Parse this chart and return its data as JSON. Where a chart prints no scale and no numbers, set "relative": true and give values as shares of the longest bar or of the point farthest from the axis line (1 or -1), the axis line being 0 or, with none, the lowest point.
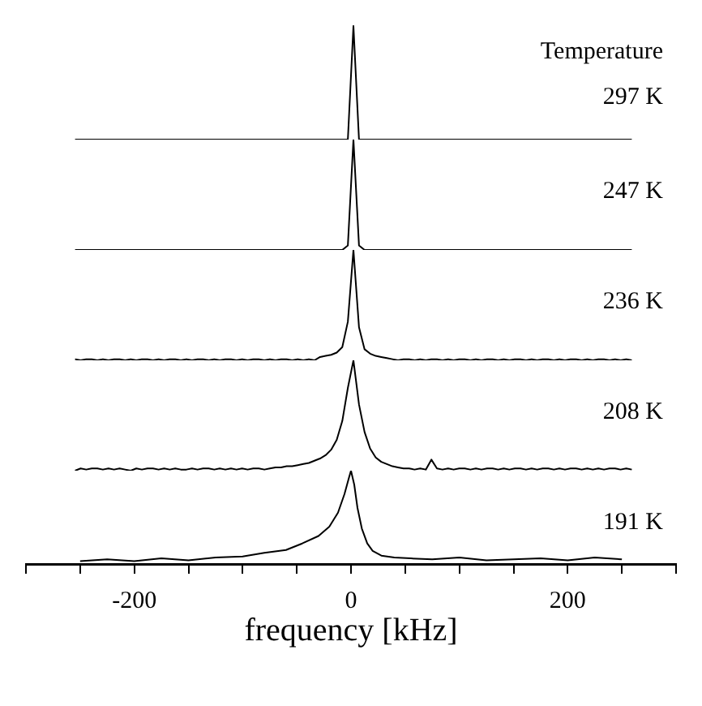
{
  "chart_data": [
    {
      "type": "line",
      "relative": true,
      "tick_labels": false,
      "annotations": [
        "Temperature",
        "297 K"
      ],
      "categories": [
        null,
        null,
        null,
        null,
        null,
        null,
        null,
        null,
        null,
        null,
        null,
        null,
        null,
        null,
        null,
        null,
        null,
        null,
        null,
        null,
        null,
        null,
        null,
        null,
        null,
        null,
        null,
        null,
        null,
        null,
        null,
        null,
        null,
        null,
        null,
        null,
        null,
        null,
        null,
        null,
        null,
        null,
        null,
        null,
        null,
        null,
        null,
        null,
        null,
        null,
        null,
        null,
        null,
        null,
        null,
        null,
        null,
        null,
        null,
        null,
        null,
        null,
        null,
        null,
        null,
        null,
        null,
        null,
        null,
        null,
        null,
        null,
        null,
        null,
        null,
        null,
        null,
        null,
        null,
        null,
        null,
        null,
        null,
        null,
        null,
        null,
        null,
        null,
        null,
        null,
        null,
        null,
        null,
        null,
        null,
        null,
        null,
        null,
        null,
        null,
        null
      ],
      "series": [
        {
          "color": "#000000",
          "values": [
            0,
            0,
            0,
            0,
            0,
            0,
            0,
            0,
            0,
            0,
            0,
            0,
            0,
            0,
            0,
            0,
            0,
            0,
            0,
            0,
            0,
            0,
            0,
            0,
            0,
            0,
            0,
            0,
            0,
            0,
            0,
            0,
            0,
            0,
            0,
            0,
            0,
            0,
            0,
            0,
            0,
            0,
            0,
            0,
            0,
            0,
            0,
            0,
            0,
            0,
            1,
            0,
            0,
            0,
            0,
            0,
            0,
            0,
            0,
            0,
            0,
            0,
            0,
            0,
            0,
            0,
            0,
            0,
            0,
            0,
            0,
            0,
            0,
            0,
            0,
            0,
            0,
            0,
            0,
            0,
            0,
            0,
            0,
            0,
            0,
            0,
            0,
            0,
            0,
            0,
            0,
            0,
            0,
            0,
            0,
            0,
            0,
            0,
            0,
            0,
            0
          ]
        }
      ]
    },
    {
      "type": "line",
      "relative": true,
      "tick_labels": false,
      "annotations": [
        "247 K"
      ],
      "categories": [
        null,
        null,
        null,
        null,
        null,
        null,
        null,
        null,
        null,
        null,
        null,
        null,
        null,
        null,
        null,
        null,
        null,
        null,
        null,
        null,
        null,
        null,
        null,
        null,
        null,
        null,
        null,
        null,
        null,
        null,
        null,
        null,
        null,
        null,
        null,
        null,
        null,
        null,
        null,
        null,
        null,
        null,
        null,
        null,
        null,
        null,
        null,
        null,
        null,
        null,
        null,
        null,
        null,
        null,
        null,
        null,
        null,
        null,
        null,
        null,
        null,
        null,
        null,
        null,
        null,
        null,
        null,
        null,
        null,
        null,
        null,
        null,
        null,
        null,
        null,
        null,
        null,
        null,
        null,
        null,
        null,
        null,
        null,
        null,
        null,
        null,
        null,
        null,
        null,
        null,
        null,
        null,
        null,
        null,
        null,
        null,
        null,
        null,
        null,
        null,
        null
      ],
      "series": [
        {
          "color": "#000000",
          "values": [
            0,
            0,
            0,
            0,
            0,
            0,
            0,
            0,
            0,
            0,
            0,
            0,
            0,
            0,
            0,
            0,
            0,
            0,
            0,
            0,
            0,
            0,
            0,
            0,
            0,
            0,
            0,
            0,
            0,
            0,
            0,
            0,
            0,
            0,
            0,
            0,
            0,
            0,
            0,
            0,
            0,
            0,
            0,
            0,
            0,
            0,
            0,
            0,
            0,
            0.04,
            1,
            0.04,
            0,
            0,
            0,
            0,
            0,
            0,
            0,
            0,
            0,
            0,
            0,
            0,
            0,
            0,
            0,
            0,
            0,
            0,
            0,
            0,
            0,
            0,
            0,
            0,
            0,
            0,
            0,
            0,
            0,
            0,
            0,
            0,
            0,
            0,
            0,
            0,
            0,
            0,
            0,
            0,
            0,
            0,
            0,
            0,
            0,
            0,
            0,
            0,
            0
          ]
        }
      ]
    },
    {
      "type": "line",
      "relative": true,
      "tick_labels": false,
      "annotations": [
        "236 K"
      ],
      "categories": [
        null,
        null,
        null,
        null,
        null,
        null,
        null,
        null,
        null,
        null,
        null,
        null,
        null,
        null,
        null,
        null,
        null,
        null,
        null,
        null,
        null,
        null,
        null,
        null,
        null,
        null,
        null,
        null,
        null,
        null,
        null,
        null,
        null,
        null,
        null,
        null,
        null,
        null,
        null,
        null,
        null,
        null,
        null,
        null,
        null,
        null,
        null,
        null,
        null,
        null,
        null,
        null,
        null,
        null,
        null,
        null,
        null,
        null,
        null,
        null,
        null,
        null,
        null,
        null,
        null,
        null,
        null,
        null,
        null,
        null,
        null,
        null,
        null,
        null,
        null,
        null,
        null,
        null,
        null,
        null,
        null,
        null,
        null,
        null,
        null,
        null,
        null,
        null,
        null,
        null,
        null,
        null,
        null,
        null,
        null,
        null,
        null,
        null,
        null,
        null,
        null
      ],
      "series": [
        {
          "color": "#000000",
          "values": [
            0.01,
            0,
            0.01,
            0.01,
            0,
            0.01,
            0,
            0.01,
            0.01,
            0,
            0.01,
            0,
            0.01,
            0.01,
            0,
            0.01,
            0,
            0.01,
            0.01,
            0,
            0.01,
            0,
            0.01,
            0.01,
            0,
            0.01,
            0,
            0.01,
            0.01,
            0,
            0.01,
            0,
            0.01,
            0.01,
            0,
            0.01,
            0,
            0.01,
            0.01,
            0,
            0.01,
            0,
            0.01,
            0,
            0.03,
            0.04,
            0.05,
            0.07,
            0.12,
            0.35,
            1,
            0.3,
            0.1,
            0.06,
            0.04,
            0.03,
            0.02,
            0.01,
            0,
            0.01,
            0.01,
            0,
            0.01,
            0,
            0.01,
            0.01,
            0,
            0.01,
            0,
            0.01,
            0.01,
            0,
            0.01,
            0,
            0.01,
            0.01,
            0,
            0.01,
            0,
            0.01,
            0.01,
            0,
            0.01,
            0,
            0.01,
            0.01,
            0,
            0.01,
            0,
            0.01,
            0.01,
            0,
            0.01,
            0,
            0.01,
            0.01,
            0,
            0.01,
            0,
            0.01,
            0
          ]
        }
      ]
    },
    {
      "type": "line",
      "relative": true,
      "tick_labels": false,
      "annotations": [
        "208 K"
      ],
      "categories": [
        null,
        null,
        null,
        null,
        null,
        null,
        null,
        null,
        null,
        null,
        null,
        null,
        null,
        null,
        null,
        null,
        null,
        null,
        null,
        null,
        null,
        null,
        null,
        null,
        null,
        null,
        null,
        null,
        null,
        null,
        null,
        null,
        null,
        null,
        null,
        null,
        null,
        null,
        null,
        null,
        null,
        null,
        null,
        null,
        null,
        null,
        null,
        null,
        null,
        null,
        null,
        null,
        null,
        null,
        null,
        null,
        null,
        null,
        null,
        null,
        null,
        null,
        null,
        null,
        null,
        null,
        null,
        null,
        null,
        null,
        null,
        null,
        null,
        null,
        null,
        null,
        null,
        null,
        null,
        null,
        null,
        null,
        null,
        null,
        null,
        null,
        null,
        null,
        null,
        null,
        null,
        null,
        null,
        null,
        null,
        null,
        null,
        null,
        null,
        null,
        null
      ],
      "series": [
        {
          "color": "#000000",
          "values": [
            0,
            0.02,
            0.01,
            0.02,
            0.02,
            0.01,
            0.02,
            0.01,
            0.02,
            0.01,
            0,
            0.02,
            0.01,
            0.02,
            0.02,
            0.01,
            0.02,
            0.01,
            0.02,
            0.01,
            0.01,
            0.02,
            0.01,
            0.02,
            0.02,
            0.01,
            0.02,
            0.01,
            0.02,
            0.01,
            0.02,
            0.01,
            0.02,
            0.02,
            0.01,
            0.02,
            0.03,
            0.03,
            0.04,
            0.04,
            0.05,
            0.06,
            0.07,
            0.09,
            0.11,
            0.14,
            0.19,
            0.28,
            0.45,
            0.75,
            1,
            0.6,
            0.35,
            0.2,
            0.12,
            0.08,
            0.06,
            0.04,
            0.03,
            0.02,
            0.02,
            0.01,
            0.02,
            0.01,
            0.1,
            0.02,
            0.01,
            0.02,
            0.01,
            0.02,
            0.02,
            0.01,
            0.02,
            0.01,
            0.02,
            0.02,
            0.01,
            0.02,
            0.01,
            0.02,
            0.02,
            0.01,
            0.02,
            0.01,
            0.02,
            0.02,
            0.01,
            0.02,
            0.01,
            0.02,
            0.02,
            0.01,
            0.02,
            0.01,
            0.02,
            0.01,
            0.02,
            0.02,
            0.01,
            0.02,
            0.01
          ]
        }
      ]
    },
    {
      "type": "line",
      "relative": true,
      "xlim": [
        -300,
        300
      ],
      "xticks": [
        {
          "value": -300,
          "label": null
        },
        {
          "value": -250,
          "label": null
        },
        -200,
        {
          "value": -150,
          "label": null
        },
        {
          "value": -100,
          "label": null
        },
        {
          "value": -50,
          "label": null
        },
        0,
        {
          "value": 50,
          "label": null
        },
        {
          "value": 100,
          "label": null
        },
        {
          "value": 150,
          "label": null
        },
        200,
        {
          "value": 250,
          "label": null
        },
        {
          "value": 300,
          "label": null
        }
      ],
      "xlabel": "frequency [kHz]",
      "annotations": [
        "191 K"
      ],
      "series": [
        {
          "color": "#000000",
          "x": [
            -250,
            -225,
            -200,
            -175,
            -150,
            -125,
            -100,
            -80,
            -60,
            -45,
            -30,
            -20,
            -12,
            -6,
            -2,
            0,
            3,
            6,
            10,
            15,
            20,
            28,
            40,
            55,
            75,
            100,
            125,
            150,
            175,
            200,
            225,
            250
          ],
          "values": [
            0.03,
            0.05,
            0.03,
            0.06,
            0.04,
            0.07,
            0.08,
            0.12,
            0.15,
            0.22,
            0.3,
            0.4,
            0.55,
            0.75,
            0.92,
            1,
            0.85,
            0.6,
            0.38,
            0.22,
            0.14,
            0.09,
            0.07,
            0.06,
            0.05,
            0.07,
            0.04,
            0.05,
            0.06,
            0.04,
            0.07,
            0.05
          ]
        }
      ]
    }
  ]
}
